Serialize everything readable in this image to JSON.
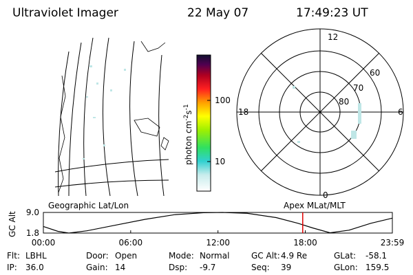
{
  "header": {
    "title": "Ultraviolet Imager",
    "date": "22 May 07",
    "time": "17:49:23 UT"
  },
  "colorbar": {
    "label": "photon cm",
    "exp1": "-2",
    "unit2": "s",
    "exp2": "-1",
    "ticks": [
      "100",
      "10"
    ]
  },
  "polar": {
    "labels": {
      "top": "12",
      "bottom": "0",
      "left": "18",
      "right": "6",
      "ring1": "60",
      "ring2": "70",
      "ring3": "80"
    }
  },
  "chart_data": {
    "type": "line",
    "left_title": "Geographic Lat/Lon",
    "right_title": "Apex MLat/MLT",
    "ylabel": "GC Alt",
    "x": [
      0,
      1,
      1.75,
      3,
      5,
      7,
      9,
      11,
      12.3,
      14,
      16,
      17.5,
      18.5,
      19.7,
      21,
      22.5,
      23.983
    ],
    "series": [
      {
        "color": "#000000",
        "values": [
          4.1,
          2.4,
          1.8,
          2.6,
          4.6,
          6.6,
          8.2,
          8.9,
          9.0,
          8.7,
          7.2,
          5.2,
          3.6,
          1.9,
          2.8,
          5.2,
          7.0
        ]
      }
    ],
    "xlim": [
      0,
      23.983
    ],
    "ylim": [
      1.8,
      9.0
    ],
    "yticks": [
      {
        "value": 9.0,
        "label": "9.0"
      },
      {
        "value": 1.8,
        "label": "1.8"
      }
    ],
    "xticks": [
      {
        "value": 0,
        "label": "00:00"
      },
      {
        "value": 6,
        "label": "06:00"
      },
      {
        "value": 12,
        "label": "12:00"
      },
      {
        "value": 18,
        "label": "18:00"
      },
      {
        "value": 23.983,
        "label": "23:59"
      }
    ],
    "marker_x": 17.823,
    "marker_color": "#e00000"
  },
  "footer": {
    "rows": [
      [
        [
          "Flt:",
          "LBHL"
        ],
        [
          "Door:",
          "Open"
        ],
        [
          "Mode:",
          "Normal"
        ],
        [
          "GC Alt:",
          "4.9 Re"
        ],
        [
          "GLat:",
          "-58.1"
        ]
      ],
      [
        [
          "IP:",
          "36.0"
        ],
        [
          "Gain:",
          "14"
        ],
        [
          "Dsp:",
          "-9.7"
        ],
        [
          "Seq:",
          "39"
        ],
        [
          "GLon:",
          "159.5"
        ]
      ]
    ]
  }
}
